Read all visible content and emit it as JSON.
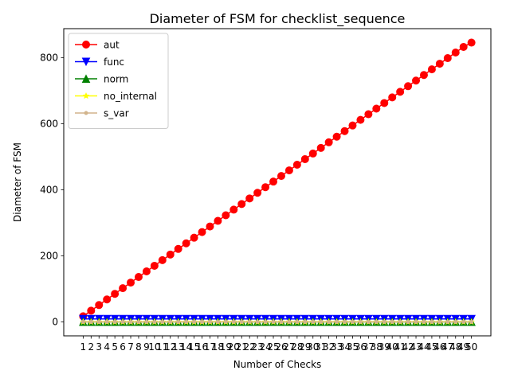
{
  "chart_data": {
    "type": "line",
    "title": "Diameter of FSM for checklist_sequence",
    "xlabel": "Number of Checks",
    "ylabel": "Diameter of FSM",
    "x": [
      1,
      2,
      3,
      4,
      5,
      6,
      7,
      8,
      9,
      10,
      11,
      12,
      13,
      14,
      15,
      16,
      17,
      18,
      19,
      20,
      21,
      22,
      23,
      24,
      25,
      26,
      27,
      28,
      29,
      30,
      31,
      32,
      33,
      34,
      35,
      36,
      37,
      38,
      39,
      40,
      41,
      42,
      43,
      44,
      45,
      46,
      47,
      48,
      49,
      50
    ],
    "xlim": [
      -1.45,
      52.45
    ],
    "ylim": [
      -42.3,
      888.3
    ],
    "yticks": [
      0,
      200,
      400,
      600,
      800
    ],
    "grid": false,
    "legend_position": "top-left",
    "series": [
      {
        "name": "aut",
        "color": "#ff0000",
        "marker": "circle",
        "values": [
          17,
          34,
          51,
          68,
          85,
          102,
          119,
          136,
          153,
          170,
          187,
          204,
          221,
          238,
          255,
          272,
          289,
          306,
          323,
          340,
          357,
          374,
          391,
          408,
          425,
          442,
          459,
          476,
          493,
          510,
          527,
          544,
          561,
          578,
          595,
          612,
          629,
          646,
          663,
          680,
          697,
          714,
          731,
          748,
          765,
          782,
          799,
          816,
          833,
          846
        ]
      },
      {
        "name": "func",
        "color": "#0000ff",
        "marker": "triangle-down",
        "values": [
          9,
          9,
          9,
          9,
          9,
          9,
          9,
          9,
          9,
          9,
          9,
          9,
          9,
          9,
          9,
          9,
          9,
          9,
          9,
          9,
          9,
          9,
          9,
          9,
          9,
          9,
          9,
          9,
          9,
          9,
          9,
          9,
          9,
          9,
          9,
          9,
          9,
          9,
          9,
          9,
          9,
          9,
          9,
          9,
          9,
          9,
          9,
          9,
          9,
          9
        ]
      },
      {
        "name": "norm",
        "color": "#008000",
        "marker": "triangle-up",
        "values": [
          0,
          0,
          0,
          0,
          0,
          0,
          0,
          0,
          0,
          0,
          0,
          0,
          0,
          0,
          0,
          0,
          0,
          0,
          0,
          0,
          0,
          0,
          0,
          0,
          0,
          0,
          0,
          0,
          0,
          0,
          0,
          0,
          0,
          0,
          0,
          0,
          0,
          0,
          0,
          0,
          0,
          0,
          0,
          0,
          0,
          0,
          0,
          0,
          0,
          0
        ]
      },
      {
        "name": "no_internal",
        "color": "#ffff00",
        "marker": "star",
        "values": [
          0,
          0,
          0,
          0,
          0,
          0,
          0,
          0,
          0,
          0,
          0,
          0,
          0,
          0,
          0,
          0,
          0,
          0,
          0,
          0,
          0,
          0,
          0,
          0,
          0,
          0,
          0,
          0,
          0,
          0,
          0,
          0,
          0,
          0,
          0,
          0,
          0,
          0,
          0,
          0,
          0,
          0,
          0,
          0,
          0,
          0,
          0,
          0,
          0,
          0
        ]
      },
      {
        "name": "s_var",
        "color": "#d2b48c",
        "marker": "point",
        "values": [
          0,
          0,
          0,
          0,
          0,
          0,
          0,
          0,
          0,
          0,
          0,
          0,
          0,
          0,
          0,
          0,
          0,
          0,
          0,
          0,
          0,
          0,
          0,
          0,
          0,
          0,
          0,
          0,
          0,
          0,
          0,
          0,
          0,
          0,
          0,
          0,
          0,
          0,
          0,
          0,
          0,
          0,
          0,
          0,
          0,
          0,
          0,
          0,
          0,
          0
        ]
      }
    ]
  }
}
